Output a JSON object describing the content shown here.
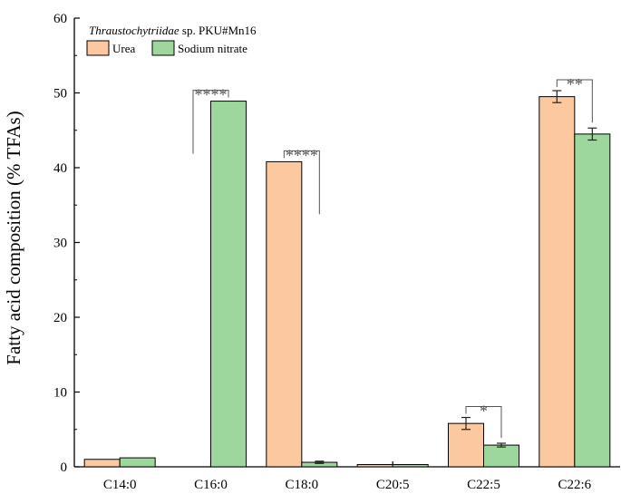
{
  "chart_data": {
    "type": "bar",
    "title": "",
    "xlabel": "",
    "ylabel": "Fatty acid composition (% TFAs)",
    "ylim": [
      0,
      60
    ],
    "yticks": [
      0,
      10,
      20,
      30,
      40,
      50,
      60
    ],
    "categories": [
      "C14:0",
      "C16:0",
      "C18:0",
      "C20:5",
      "C22:5",
      "C22:6"
    ],
    "series": [
      {
        "name": "Urea",
        "color": "#FBC8A0",
        "values": [
          1.0,
          0.0,
          40.8,
          0.3,
          5.8,
          49.5
        ],
        "errors": [
          0,
          0,
          0,
          0,
          0.8,
          0.8
        ]
      },
      {
        "name": "Sodium nitrate",
        "color": "#9ED79E",
        "values": [
          1.2,
          48.9,
          0.6,
          0.3,
          2.9,
          44.5
        ],
        "errors": [
          0,
          0,
          0.15,
          0,
          0.25,
          0.8
        ]
      }
    ],
    "legend": {
      "title_italic": "Thraustochytriidae",
      "title_rest": " sp. PKU#Mn16",
      "placement": "top-left"
    },
    "significance": [
      {
        "category": "C16:0",
        "label": "****"
      },
      {
        "category": "C18:0",
        "label": "****"
      },
      {
        "category": "C22:5",
        "label": "*"
      },
      {
        "category": "C22:6",
        "label": "**"
      }
    ],
    "grid": false
  }
}
